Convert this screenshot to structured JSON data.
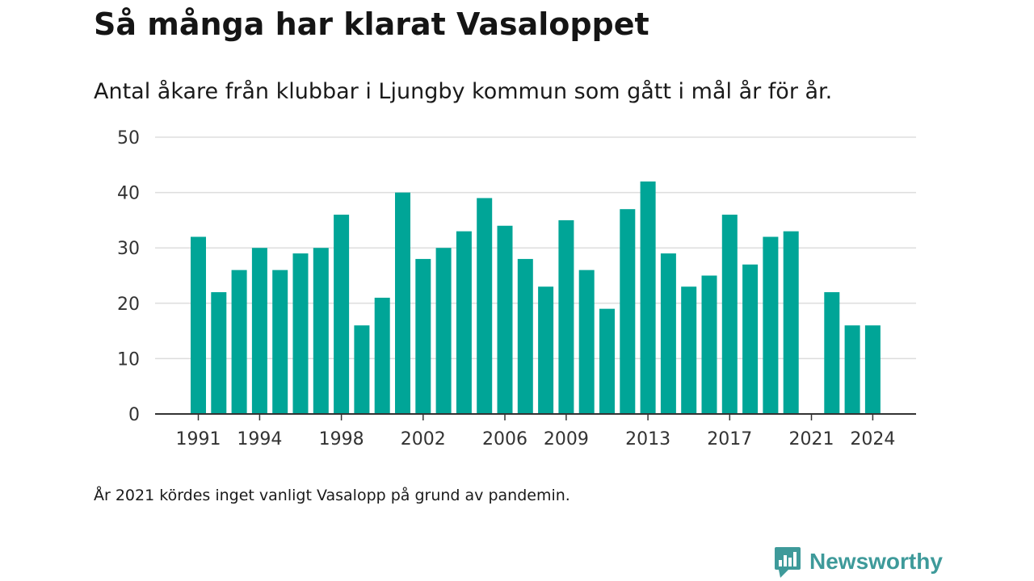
{
  "title": "Så många har klarat Vasaloppet",
  "subtitle": "Antal åkare från klubbar i Ljungby kommun som gått i mål år för år.",
  "note": "År 2021 kördes inget vanligt Vasalopp på grund av pandemin.",
  "brand": {
    "name": "Newsworthy",
    "icon": "newsworthy-logo-icon"
  },
  "colors": {
    "bar": "#00a597",
    "grid": "#dddddd",
    "axis": "#333333",
    "brand": "#3e9a9a"
  },
  "chart_data": {
    "type": "bar",
    "categories": [
      1991,
      1992,
      1993,
      1994,
      1995,
      1996,
      1997,
      1998,
      1999,
      2000,
      2001,
      2002,
      2003,
      2004,
      2005,
      2006,
      2007,
      2008,
      2009,
      2010,
      2011,
      2012,
      2013,
      2014,
      2015,
      2016,
      2017,
      2018,
      2019,
      2020,
      2021,
      2022,
      2023,
      2024
    ],
    "values": [
      32,
      22,
      26,
      30,
      26,
      29,
      30,
      36,
      16,
      21,
      40,
      28,
      30,
      33,
      39,
      34,
      28,
      23,
      35,
      26,
      19,
      37,
      42,
      29,
      23,
      25,
      36,
      27,
      32,
      33,
      null,
      22,
      16,
      16
    ],
    "x_ticks": [
      1991,
      1994,
      1998,
      2002,
      2006,
      2009,
      2013,
      2017,
      2021,
      2024
    ],
    "y_ticks": [
      0,
      10,
      20,
      30,
      40,
      50
    ],
    "ylim": [
      0,
      50
    ],
    "grid": true,
    "xlabel": "",
    "ylabel": ""
  }
}
